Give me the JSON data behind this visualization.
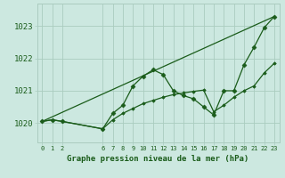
{
  "title": "Graphe pression niveau de la mer (hPa)",
  "bg_color": "#cce8e0",
  "grid_color": "#aaccbf",
  "line_color": "#1a5c1a",
  "xlim": [
    -0.5,
    23.5
  ],
  "ylim": [
    1019.4,
    1023.7
  ],
  "yticks": [
    1020,
    1021,
    1022,
    1023
  ],
  "ytick_labels": [
    "1020",
    "1021",
    "1022",
    "1023"
  ],
  "xticks": [
    0,
    1,
    2,
    6,
    7,
    8,
    9,
    10,
    11,
    12,
    13,
    14,
    15,
    16,
    17,
    18,
    19,
    20,
    21,
    22,
    23
  ],
  "series": [
    {
      "x": [
        0,
        1,
        2,
        6,
        7,
        8,
        9,
        10,
        11,
        12,
        13,
        14,
        15,
        16,
        17,
        18,
        19,
        20,
        21,
        22,
        23
      ],
      "y": [
        1020.05,
        1020.1,
        1020.05,
        1019.82,
        1020.3,
        1020.55,
        1021.15,
        1021.45,
        1021.65,
        1021.5,
        1021.0,
        1020.85,
        1020.75,
        1020.5,
        1020.25,
        1021.0,
        1021.0,
        1021.8,
        1022.35,
        1022.95,
        1023.3
      ],
      "marker": "D",
      "markersize": 2.5,
      "linewidth": 0.9
    },
    {
      "x": [
        0,
        23
      ],
      "y": [
        1020.05,
        1023.3
      ],
      "marker": null,
      "markersize": 0,
      "linewidth": 0.9
    },
    {
      "x": [
        0,
        1,
        2,
        6,
        7,
        8,
        9,
        10,
        11,
        12,
        13,
        14,
        15,
        16,
        17,
        18,
        19,
        20,
        21,
        22,
        23
      ],
      "y": [
        1020.05,
        1020.1,
        1020.05,
        1019.82,
        1020.1,
        1020.3,
        1020.45,
        1020.6,
        1020.7,
        1020.8,
        1020.88,
        1020.93,
        1020.98,
        1021.02,
        1020.35,
        1020.55,
        1020.8,
        1021.0,
        1021.15,
        1021.55,
        1021.85
      ],
      "marker": "D",
      "markersize": 1.8,
      "linewidth": 0.9
    }
  ]
}
